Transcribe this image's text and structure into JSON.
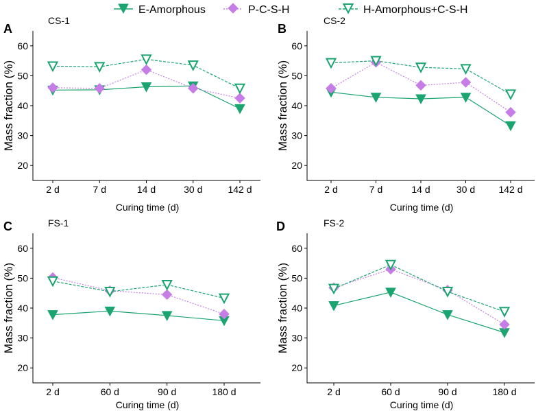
{
  "colors": {
    "e_amorphous": "#1aa46f",
    "p_csh": "#c77de6",
    "h_amorphous": "#1aa46f"
  },
  "legend": [
    {
      "name": "E-Amorphous",
      "marker": "filled-down-triangle",
      "line": "solid"
    },
    {
      "name": "P-C-S-H",
      "marker": "diamond",
      "line": "dotted"
    },
    {
      "name": "H-Amorphous+C-S-H",
      "marker": "open-down-triangle",
      "line": "dashed"
    }
  ],
  "chart_data": [
    {
      "type": "line",
      "letter": "A",
      "title": "CS-1",
      "xlabel": "Curing time (d)",
      "ylabel": "Mass fraction (%)",
      "ylim": [
        15,
        65
      ],
      "yticks": [
        "20",
        "30",
        "40",
        "50",
        "60"
      ],
      "categories": [
        "2 d",
        "7 d",
        "14 d",
        "30 d",
        "142 d"
      ],
      "series": [
        {
          "name": "E-Amorphous",
          "values": [
            45.2,
            45.3,
            46.3,
            46.6,
            39.0
          ]
        },
        {
          "name": "P-C-S-H",
          "values": [
            46.0,
            45.8,
            52.0,
            45.8,
            42.5
          ]
        },
        {
          "name": "H-Amorphous+C-S-H",
          "values": [
            53.2,
            53.0,
            55.5,
            53.5,
            45.8
          ]
        }
      ]
    },
    {
      "type": "line",
      "letter": "B",
      "title": "CS-2",
      "xlabel": "Curing time (d)",
      "ylabel": "Mass fraction (%)",
      "ylim": [
        15,
        65
      ],
      "yticks": [
        "20",
        "30",
        "40",
        "50",
        "60"
      ],
      "categories": [
        "2 d",
        "7 d",
        "14 d",
        "30 d",
        "142 d"
      ],
      "series": [
        {
          "name": "E-Amorphous",
          "values": [
            44.5,
            42.8,
            42.3,
            42.8,
            33.3
          ]
        },
        {
          "name": "P-C-S-H",
          "values": [
            45.8,
            54.5,
            46.8,
            47.8,
            37.8
          ]
        },
        {
          "name": "H-Amorphous+C-S-H",
          "values": [
            54.3,
            55.0,
            52.8,
            52.3,
            43.8
          ]
        }
      ]
    },
    {
      "type": "line",
      "letter": "C",
      "title": "FS-1",
      "xlabel": "Curing time (d)",
      "ylabel": "Mass fraction (%)",
      "ylim": [
        15,
        65
      ],
      "yticks": [
        "20",
        "30",
        "40",
        "50",
        "60"
      ],
      "categories": [
        "2 d",
        "60 d",
        "90 d",
        "180 d"
      ],
      "series": [
        {
          "name": "E-Amorphous",
          "values": [
            37.8,
            39.0,
            37.5,
            35.8
          ]
        },
        {
          "name": "P-C-S-H",
          "values": [
            50.2,
            45.8,
            44.5,
            38.0
          ]
        },
        {
          "name": "H-Amorphous+C-S-H",
          "values": [
            49.0,
            45.5,
            47.8,
            43.3
          ]
        }
      ]
    },
    {
      "type": "line",
      "letter": "D",
      "title": "FS-2",
      "xlabel": "Curing time (d)",
      "ylabel": "Mass fraction (%)",
      "ylim": [
        15,
        65
      ],
      "yticks": [
        "20",
        "30",
        "40",
        "50",
        "60"
      ],
      "categories": [
        "2 d",
        "60 d",
        "90 d",
        "180 d"
      ],
      "series": [
        {
          "name": "E-Amorphous",
          "values": [
            40.8,
            45.3,
            37.8,
            31.8
          ]
        },
        {
          "name": "P-C-S-H",
          "values": [
            46.8,
            53.0,
            46.0,
            34.5
          ]
        },
        {
          "name": "H-Amorphous+C-S-H",
          "values": [
            46.5,
            54.5,
            45.5,
            38.8
          ]
        }
      ]
    }
  ]
}
